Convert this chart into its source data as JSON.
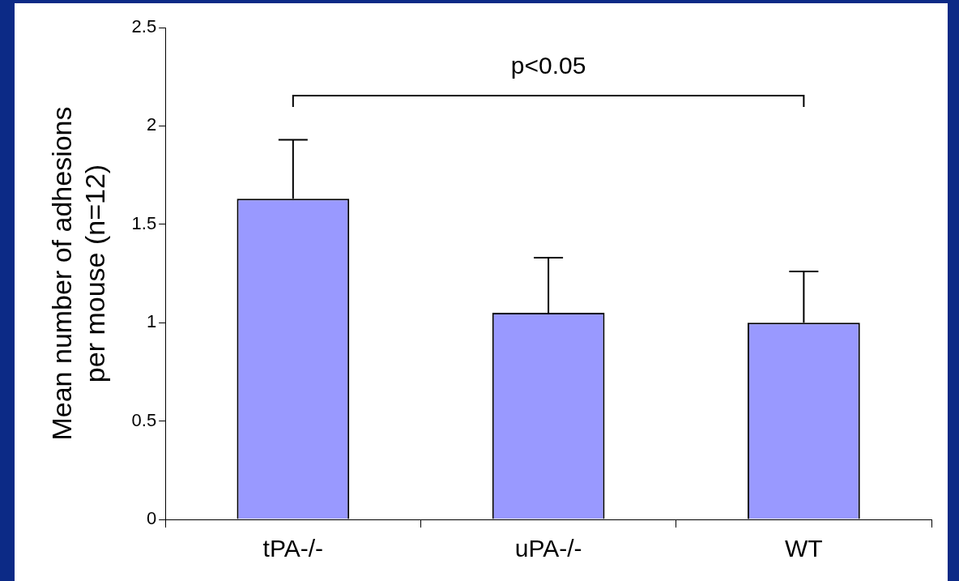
{
  "chart_data": {
    "type": "bar",
    "categories": [
      "tPA-/-",
      "uPA-/-",
      "WT"
    ],
    "values": [
      1.63,
      1.05,
      1.0
    ],
    "color": "#9999ff",
    "errors": [
      [
        1.63,
        1.93
      ],
      [
        1.05,
        1.33
      ],
      [
        1.0,
        1.26
      ]
    ],
    "ylabel": "Mean number of adhesions\nper mouse (n=12)",
    "ylim": [
      0,
      2.5
    ],
    "yticks": [
      0,
      0.5,
      1,
      1.5,
      2,
      2.5
    ],
    "annotations": [
      "p<0.05"
    ],
    "grid": false,
    "legend": false
  }
}
